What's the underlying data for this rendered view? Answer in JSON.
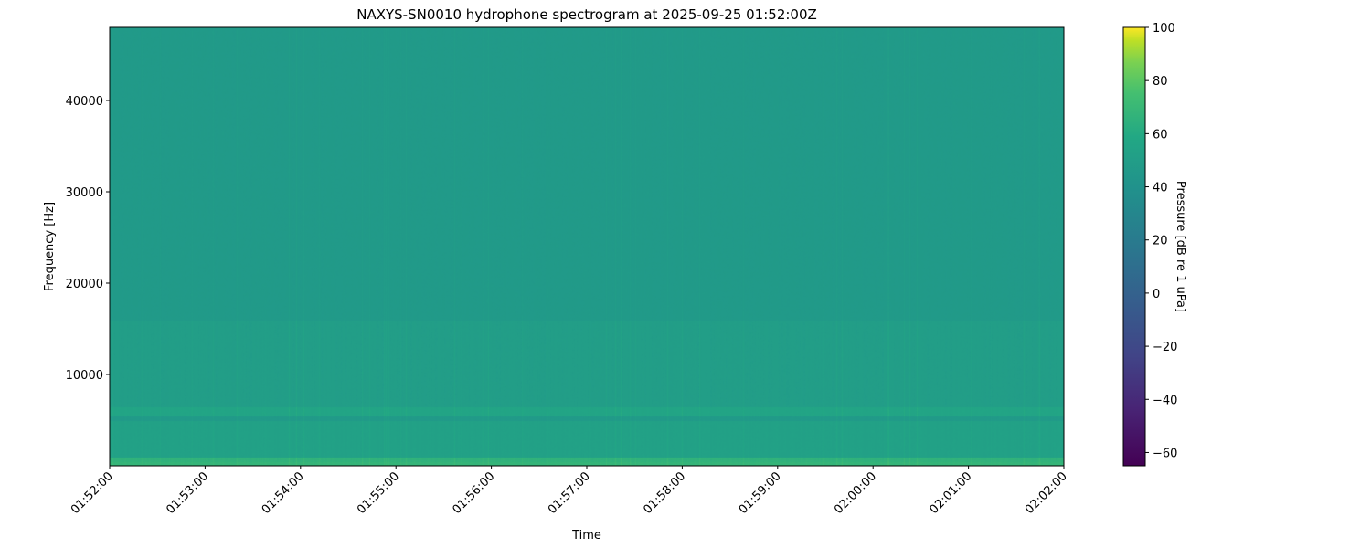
{
  "chart_data": {
    "type": "heatmap",
    "title": "NAXYS-SN0010 hydrophone spectrogram at 2025-09-25 01:52:00Z",
    "xlabel": "Time",
    "ylabel": "Frequency [Hz]",
    "x_ticks": [
      "01:52:00",
      "01:53:00",
      "01:54:00",
      "01:55:00",
      "01:56:00",
      "01:57:00",
      "01:58:00",
      "01:59:00",
      "02:00:00",
      "02:01:00",
      "02:02:00"
    ],
    "xlim": [
      "01:52:00",
      "02:02:00"
    ],
    "y_ticks": [
      10000,
      20000,
      30000,
      40000
    ],
    "ylim": [
      0,
      48000
    ],
    "colormap": "viridis",
    "colorbar": {
      "label": "Pressure [dB re 1 uPa]",
      "range": [
        -65,
        100
      ],
      "ticks": [
        -60,
        -40,
        -20,
        0,
        20,
        40,
        60,
        80,
        100
      ]
    },
    "levels_by_band_db": [
      {
        "freq_hz": [
          0,
          1000
        ],
        "level": 66
      },
      {
        "freq_hz": [
          1000,
          5000
        ],
        "level": 53
      },
      {
        "freq_hz": [
          5500,
          6500
        ],
        "level": 56
      },
      {
        "freq_hz": [
          6500,
          16000
        ],
        "level": 50
      },
      {
        "freq_hz": [
          16000,
          48000
        ],
        "level": 47
      }
    ],
    "grid": false
  }
}
